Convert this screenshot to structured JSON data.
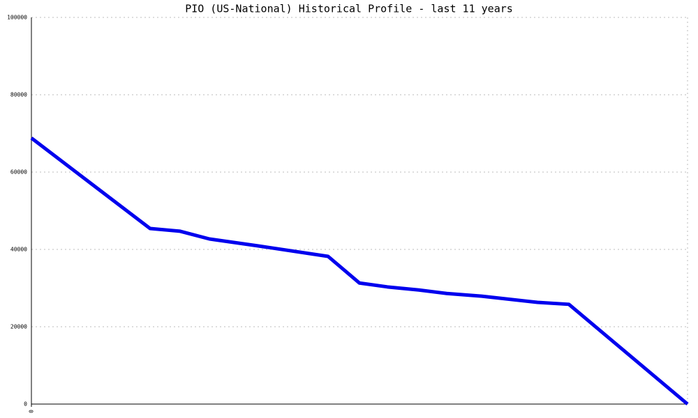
{
  "chart_data": {
    "type": "line",
    "title": "PIO (US-National) Historical Profile - last 11 years",
    "x": [
      0,
      170,
      213,
      255,
      325,
      425,
      470,
      510,
      555,
      595,
      645,
      725,
      770,
      940
    ],
    "series": [
      {
        "name": "PIO",
        "color": "#0000ee",
        "values": [
          68800,
          45400,
          44700,
          42700,
          40900,
          38200,
          31300,
          30300,
          29500,
          28600,
          27900,
          26300,
          25800,
          0
        ]
      }
    ],
    "xlim": [
      0,
      940
    ],
    "xticks": [
      0
    ],
    "ylim": [
      0,
      100000
    ],
    "yticks": [
      0,
      20000,
      40000,
      60000,
      80000,
      100000
    ],
    "grid": true
  }
}
